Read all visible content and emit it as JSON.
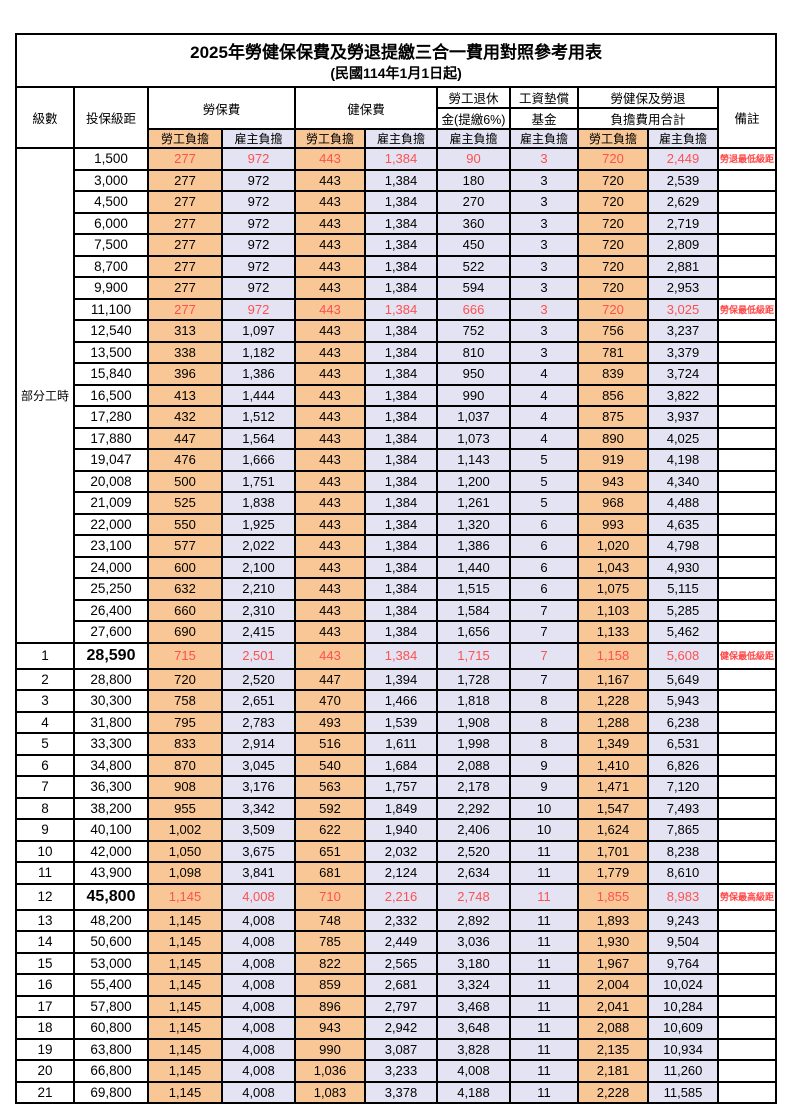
{
  "title": "2025年勞健保保費及勞退提繳三合一費用對照參考用表",
  "subtitle": "(民國114年1月1日起)",
  "colors": {
    "employee_bg": "#F9C795",
    "employer_bg": "#E3E3F3",
    "highlight_red": "#FF5050",
    "note_red": "#FF4646",
    "border": "#000000"
  },
  "header": {
    "level": "級數",
    "bracket": "投保級距",
    "labor_ins": "勞保費",
    "health_ins": "健保費",
    "pension_line1": "勞工退休",
    "pension_line2": "金(提繳6%)",
    "wage_fund_line1": "工資墊償",
    "wage_fund_line2": "基金",
    "total_line1": "勞健保及勞退",
    "total_line2": "負擔費用合計",
    "note": "備註",
    "employee": "勞工負擔",
    "employer": "雇主負擔"
  },
  "part_time_label": "部分工時",
  "part_time_rowspan": 23,
  "rows": [
    {
      "level": "",
      "bracket": "1,500",
      "values": [
        "277",
        "972",
        "443",
        "1,384",
        "90",
        "3",
        "720",
        "2,449"
      ],
      "note": "勞退最低級距",
      "red": true,
      "special": false
    },
    {
      "level": "",
      "bracket": "3,000",
      "values": [
        "277",
        "972",
        "443",
        "1,384",
        "180",
        "3",
        "720",
        "2,539"
      ],
      "note": "",
      "red": false,
      "special": false
    },
    {
      "level": "",
      "bracket": "4,500",
      "values": [
        "277",
        "972",
        "443",
        "1,384",
        "270",
        "3",
        "720",
        "2,629"
      ],
      "note": "",
      "red": false,
      "special": false
    },
    {
      "level": "",
      "bracket": "6,000",
      "values": [
        "277",
        "972",
        "443",
        "1,384",
        "360",
        "3",
        "720",
        "2,719"
      ],
      "note": "",
      "red": false,
      "special": false
    },
    {
      "level": "",
      "bracket": "7,500",
      "values": [
        "277",
        "972",
        "443",
        "1,384",
        "450",
        "3",
        "720",
        "2,809"
      ],
      "note": "",
      "red": false,
      "special": false
    },
    {
      "level": "",
      "bracket": "8,700",
      "values": [
        "277",
        "972",
        "443",
        "1,384",
        "522",
        "3",
        "720",
        "2,881"
      ],
      "note": "",
      "red": false,
      "special": false
    },
    {
      "level": "",
      "bracket": "9,900",
      "values": [
        "277",
        "972",
        "443",
        "1,384",
        "594",
        "3",
        "720",
        "2,953"
      ],
      "note": "",
      "red": false,
      "special": false
    },
    {
      "level": "",
      "bracket": "11,100",
      "values": [
        "277",
        "972",
        "443",
        "1,384",
        "666",
        "3",
        "720",
        "3,025"
      ],
      "note": "勞保最低級距",
      "red": true,
      "special": false
    },
    {
      "level": "",
      "bracket": "12,540",
      "values": [
        "313",
        "1,097",
        "443",
        "1,384",
        "752",
        "3",
        "756",
        "3,237"
      ],
      "note": "",
      "red": false,
      "special": false
    },
    {
      "level": "",
      "bracket": "13,500",
      "values": [
        "338",
        "1,182",
        "443",
        "1,384",
        "810",
        "3",
        "781",
        "3,379"
      ],
      "note": "",
      "red": false,
      "special": false
    },
    {
      "level": "",
      "bracket": "15,840",
      "values": [
        "396",
        "1,386",
        "443",
        "1,384",
        "950",
        "4",
        "839",
        "3,724"
      ],
      "note": "",
      "red": false,
      "special": false
    },
    {
      "level": "",
      "bracket": "16,500",
      "values": [
        "413",
        "1,444",
        "443",
        "1,384",
        "990",
        "4",
        "856",
        "3,822"
      ],
      "note": "",
      "red": false,
      "special": false
    },
    {
      "level": "",
      "bracket": "17,280",
      "values": [
        "432",
        "1,512",
        "443",
        "1,384",
        "1,037",
        "4",
        "875",
        "3,937"
      ],
      "note": "",
      "red": false,
      "special": false
    },
    {
      "level": "",
      "bracket": "17,880",
      "values": [
        "447",
        "1,564",
        "443",
        "1,384",
        "1,073",
        "4",
        "890",
        "4,025"
      ],
      "note": "",
      "red": false,
      "special": false
    },
    {
      "level": "",
      "bracket": "19,047",
      "values": [
        "476",
        "1,666",
        "443",
        "1,384",
        "1,143",
        "5",
        "919",
        "4,198"
      ],
      "note": "",
      "red": false,
      "special": false
    },
    {
      "level": "",
      "bracket": "20,008",
      "values": [
        "500",
        "1,751",
        "443",
        "1,384",
        "1,200",
        "5",
        "943",
        "4,340"
      ],
      "note": "",
      "red": false,
      "special": false
    },
    {
      "level": "",
      "bracket": "21,009",
      "values": [
        "525",
        "1,838",
        "443",
        "1,384",
        "1,261",
        "5",
        "968",
        "4,488"
      ],
      "note": "",
      "red": false,
      "special": false
    },
    {
      "level": "",
      "bracket": "22,000",
      "values": [
        "550",
        "1,925",
        "443",
        "1,384",
        "1,320",
        "6",
        "993",
        "4,635"
      ],
      "note": "",
      "red": false,
      "special": false
    },
    {
      "level": "",
      "bracket": "23,100",
      "values": [
        "577",
        "2,022",
        "443",
        "1,384",
        "1,386",
        "6",
        "1,020",
        "4,798"
      ],
      "note": "",
      "red": false,
      "special": false
    },
    {
      "level": "",
      "bracket": "24,000",
      "values": [
        "600",
        "2,100",
        "443",
        "1,384",
        "1,440",
        "6",
        "1,043",
        "4,930"
      ],
      "note": "",
      "red": false,
      "special": false
    },
    {
      "level": "",
      "bracket": "25,250",
      "values": [
        "632",
        "2,210",
        "443",
        "1,384",
        "1,515",
        "6",
        "1,075",
        "5,115"
      ],
      "note": "",
      "red": false,
      "special": false
    },
    {
      "level": "",
      "bracket": "26,400",
      "values": [
        "660",
        "2,310",
        "443",
        "1,384",
        "1,584",
        "7",
        "1,103",
        "5,285"
      ],
      "note": "",
      "red": false,
      "special": false
    },
    {
      "level": "",
      "bracket": "27,600",
      "values": [
        "690",
        "2,415",
        "443",
        "1,384",
        "1,656",
        "7",
        "1,133",
        "5,462"
      ],
      "note": "",
      "red": false,
      "special": false
    },
    {
      "level": "1",
      "bracket": "28,590",
      "values": [
        "715",
        "2,501",
        "443",
        "1,384",
        "1,715",
        "7",
        "1,158",
        "5,608"
      ],
      "note": "健保最低級距",
      "red": true,
      "special": true
    },
    {
      "level": "2",
      "bracket": "28,800",
      "values": [
        "720",
        "2,520",
        "447",
        "1,394",
        "1,728",
        "7",
        "1,167",
        "5,649"
      ],
      "note": "",
      "red": false,
      "special": false
    },
    {
      "level": "3",
      "bracket": "30,300",
      "values": [
        "758",
        "2,651",
        "470",
        "1,466",
        "1,818",
        "8",
        "1,228",
        "5,943"
      ],
      "note": "",
      "red": false,
      "special": false
    },
    {
      "level": "4",
      "bracket": "31,800",
      "values": [
        "795",
        "2,783",
        "493",
        "1,539",
        "1,908",
        "8",
        "1,288",
        "6,238"
      ],
      "note": "",
      "red": false,
      "special": false
    },
    {
      "level": "5",
      "bracket": "33,300",
      "values": [
        "833",
        "2,914",
        "516",
        "1,611",
        "1,998",
        "8",
        "1,349",
        "6,531"
      ],
      "note": "",
      "red": false,
      "special": false
    },
    {
      "level": "6",
      "bracket": "34,800",
      "values": [
        "870",
        "3,045",
        "540",
        "1,684",
        "2,088",
        "9",
        "1,410",
        "6,826"
      ],
      "note": "",
      "red": false,
      "special": false
    },
    {
      "level": "7",
      "bracket": "36,300",
      "values": [
        "908",
        "3,176",
        "563",
        "1,757",
        "2,178",
        "9",
        "1,471",
        "7,120"
      ],
      "note": "",
      "red": false,
      "special": false
    },
    {
      "level": "8",
      "bracket": "38,200",
      "values": [
        "955",
        "3,342",
        "592",
        "1,849",
        "2,292",
        "10",
        "1,547",
        "7,493"
      ],
      "note": "",
      "red": false,
      "special": false
    },
    {
      "level": "9",
      "bracket": "40,100",
      "values": [
        "1,002",
        "3,509",
        "622",
        "1,940",
        "2,406",
        "10",
        "1,624",
        "7,865"
      ],
      "note": "",
      "red": false,
      "special": false
    },
    {
      "level": "10",
      "bracket": "42,000",
      "values": [
        "1,050",
        "3,675",
        "651",
        "2,032",
        "2,520",
        "11",
        "1,701",
        "8,238"
      ],
      "note": "",
      "red": false,
      "special": false
    },
    {
      "level": "11",
      "bracket": "43,900",
      "values": [
        "1,098",
        "3,841",
        "681",
        "2,124",
        "2,634",
        "11",
        "1,779",
        "8,610"
      ],
      "note": "",
      "red": false,
      "special": false
    },
    {
      "level": "12",
      "bracket": "45,800",
      "values": [
        "1,145",
        "4,008",
        "710",
        "2,216",
        "2,748",
        "11",
        "1,855",
        "8,983"
      ],
      "note": "勞保最高級距",
      "red": true,
      "special": true
    },
    {
      "level": "13",
      "bracket": "48,200",
      "values": [
        "1,145",
        "4,008",
        "748",
        "2,332",
        "2,892",
        "11",
        "1,893",
        "9,243"
      ],
      "note": "",
      "red": false,
      "special": false
    },
    {
      "level": "14",
      "bracket": "50,600",
      "values": [
        "1,145",
        "4,008",
        "785",
        "2,449",
        "3,036",
        "11",
        "1,930",
        "9,504"
      ],
      "note": "",
      "red": false,
      "special": false
    },
    {
      "level": "15",
      "bracket": "53,000",
      "values": [
        "1,145",
        "4,008",
        "822",
        "2,565",
        "3,180",
        "11",
        "1,967",
        "9,764"
      ],
      "note": "",
      "red": false,
      "special": false
    },
    {
      "level": "16",
      "bracket": "55,400",
      "values": [
        "1,145",
        "4,008",
        "859",
        "2,681",
        "3,324",
        "11",
        "2,004",
        "10,024"
      ],
      "note": "",
      "red": false,
      "special": false
    },
    {
      "level": "17",
      "bracket": "57,800",
      "values": [
        "1,145",
        "4,008",
        "896",
        "2,797",
        "3,468",
        "11",
        "2,041",
        "10,284"
      ],
      "note": "",
      "red": false,
      "special": false
    },
    {
      "level": "18",
      "bracket": "60,800",
      "values": [
        "1,145",
        "4,008",
        "943",
        "2,942",
        "3,648",
        "11",
        "2,088",
        "10,609"
      ],
      "note": "",
      "red": false,
      "special": false
    },
    {
      "level": "19",
      "bracket": "63,800",
      "values": [
        "1,145",
        "4,008",
        "990",
        "3,087",
        "3,828",
        "11",
        "2,135",
        "10,934"
      ],
      "note": "",
      "red": false,
      "special": false
    },
    {
      "level": "20",
      "bracket": "66,800",
      "values": [
        "1,145",
        "4,008",
        "1,036",
        "3,233",
        "4,008",
        "11",
        "2,181",
        "11,260"
      ],
      "note": "",
      "red": false,
      "special": false
    },
    {
      "level": "21",
      "bracket": "69,800",
      "values": [
        "1,145",
        "4,008",
        "1,083",
        "3,378",
        "4,188",
        "11",
        "2,228",
        "11,585"
      ],
      "note": "",
      "red": false,
      "special": false
    }
  ]
}
